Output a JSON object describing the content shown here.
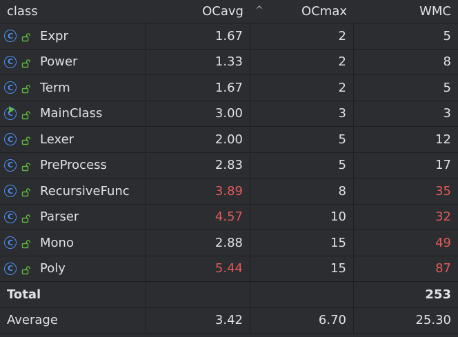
{
  "columns": {
    "class": "class",
    "ocavg": "OCavg",
    "ocmax": "OCmax",
    "wmc": "WMC",
    "sort_indicator": "^"
  },
  "rows": [
    {
      "name": "Expr",
      "ocavg": "1.67",
      "ocmax": "2",
      "wmc": "5"
    },
    {
      "name": "Power",
      "ocavg": "1.33",
      "ocmax": "2",
      "wmc": "8"
    },
    {
      "name": "Term",
      "ocavg": "1.67",
      "ocmax": "2",
      "wmc": "5"
    },
    {
      "name": "MainClass",
      "ocavg": "3.00",
      "ocmax": "3",
      "wmc": "3"
    },
    {
      "name": "Lexer",
      "ocavg": "2.00",
      "ocmax": "5",
      "wmc": "12"
    },
    {
      "name": "PreProcess",
      "ocavg": "2.83",
      "ocmax": "5",
      "wmc": "17"
    },
    {
      "name": "RecursiveFunc",
      "ocavg": "3.89",
      "ocmax": "8",
      "wmc": "35"
    },
    {
      "name": "Parser",
      "ocavg": "4.57",
      "ocmax": "10",
      "wmc": "32"
    },
    {
      "name": "Mono",
      "ocavg": "2.88",
      "ocmax": "15",
      "wmc": "49"
    },
    {
      "name": "Poly",
      "ocavg": "5.44",
      "ocmax": "15",
      "wmc": "87"
    }
  ],
  "total": {
    "label": "Total",
    "ocavg": "",
    "ocmax": "",
    "wmc": "253"
  },
  "average": {
    "label": "Average",
    "ocavg": "3.42",
    "ocmax": "6.70",
    "wmc": "25.30"
  },
  "icons": {
    "class_icon": "class-icon",
    "class_icon_letter": "C",
    "lock_icon": "unlocked-icon",
    "run_marker": "run-icon"
  },
  "colors": {
    "background": "#2b2d30",
    "text": "#dfe1e5",
    "warning": "#e05a5a",
    "class_icon": "#4b8ff2",
    "lock_icon": "#5fb83e"
  }
}
